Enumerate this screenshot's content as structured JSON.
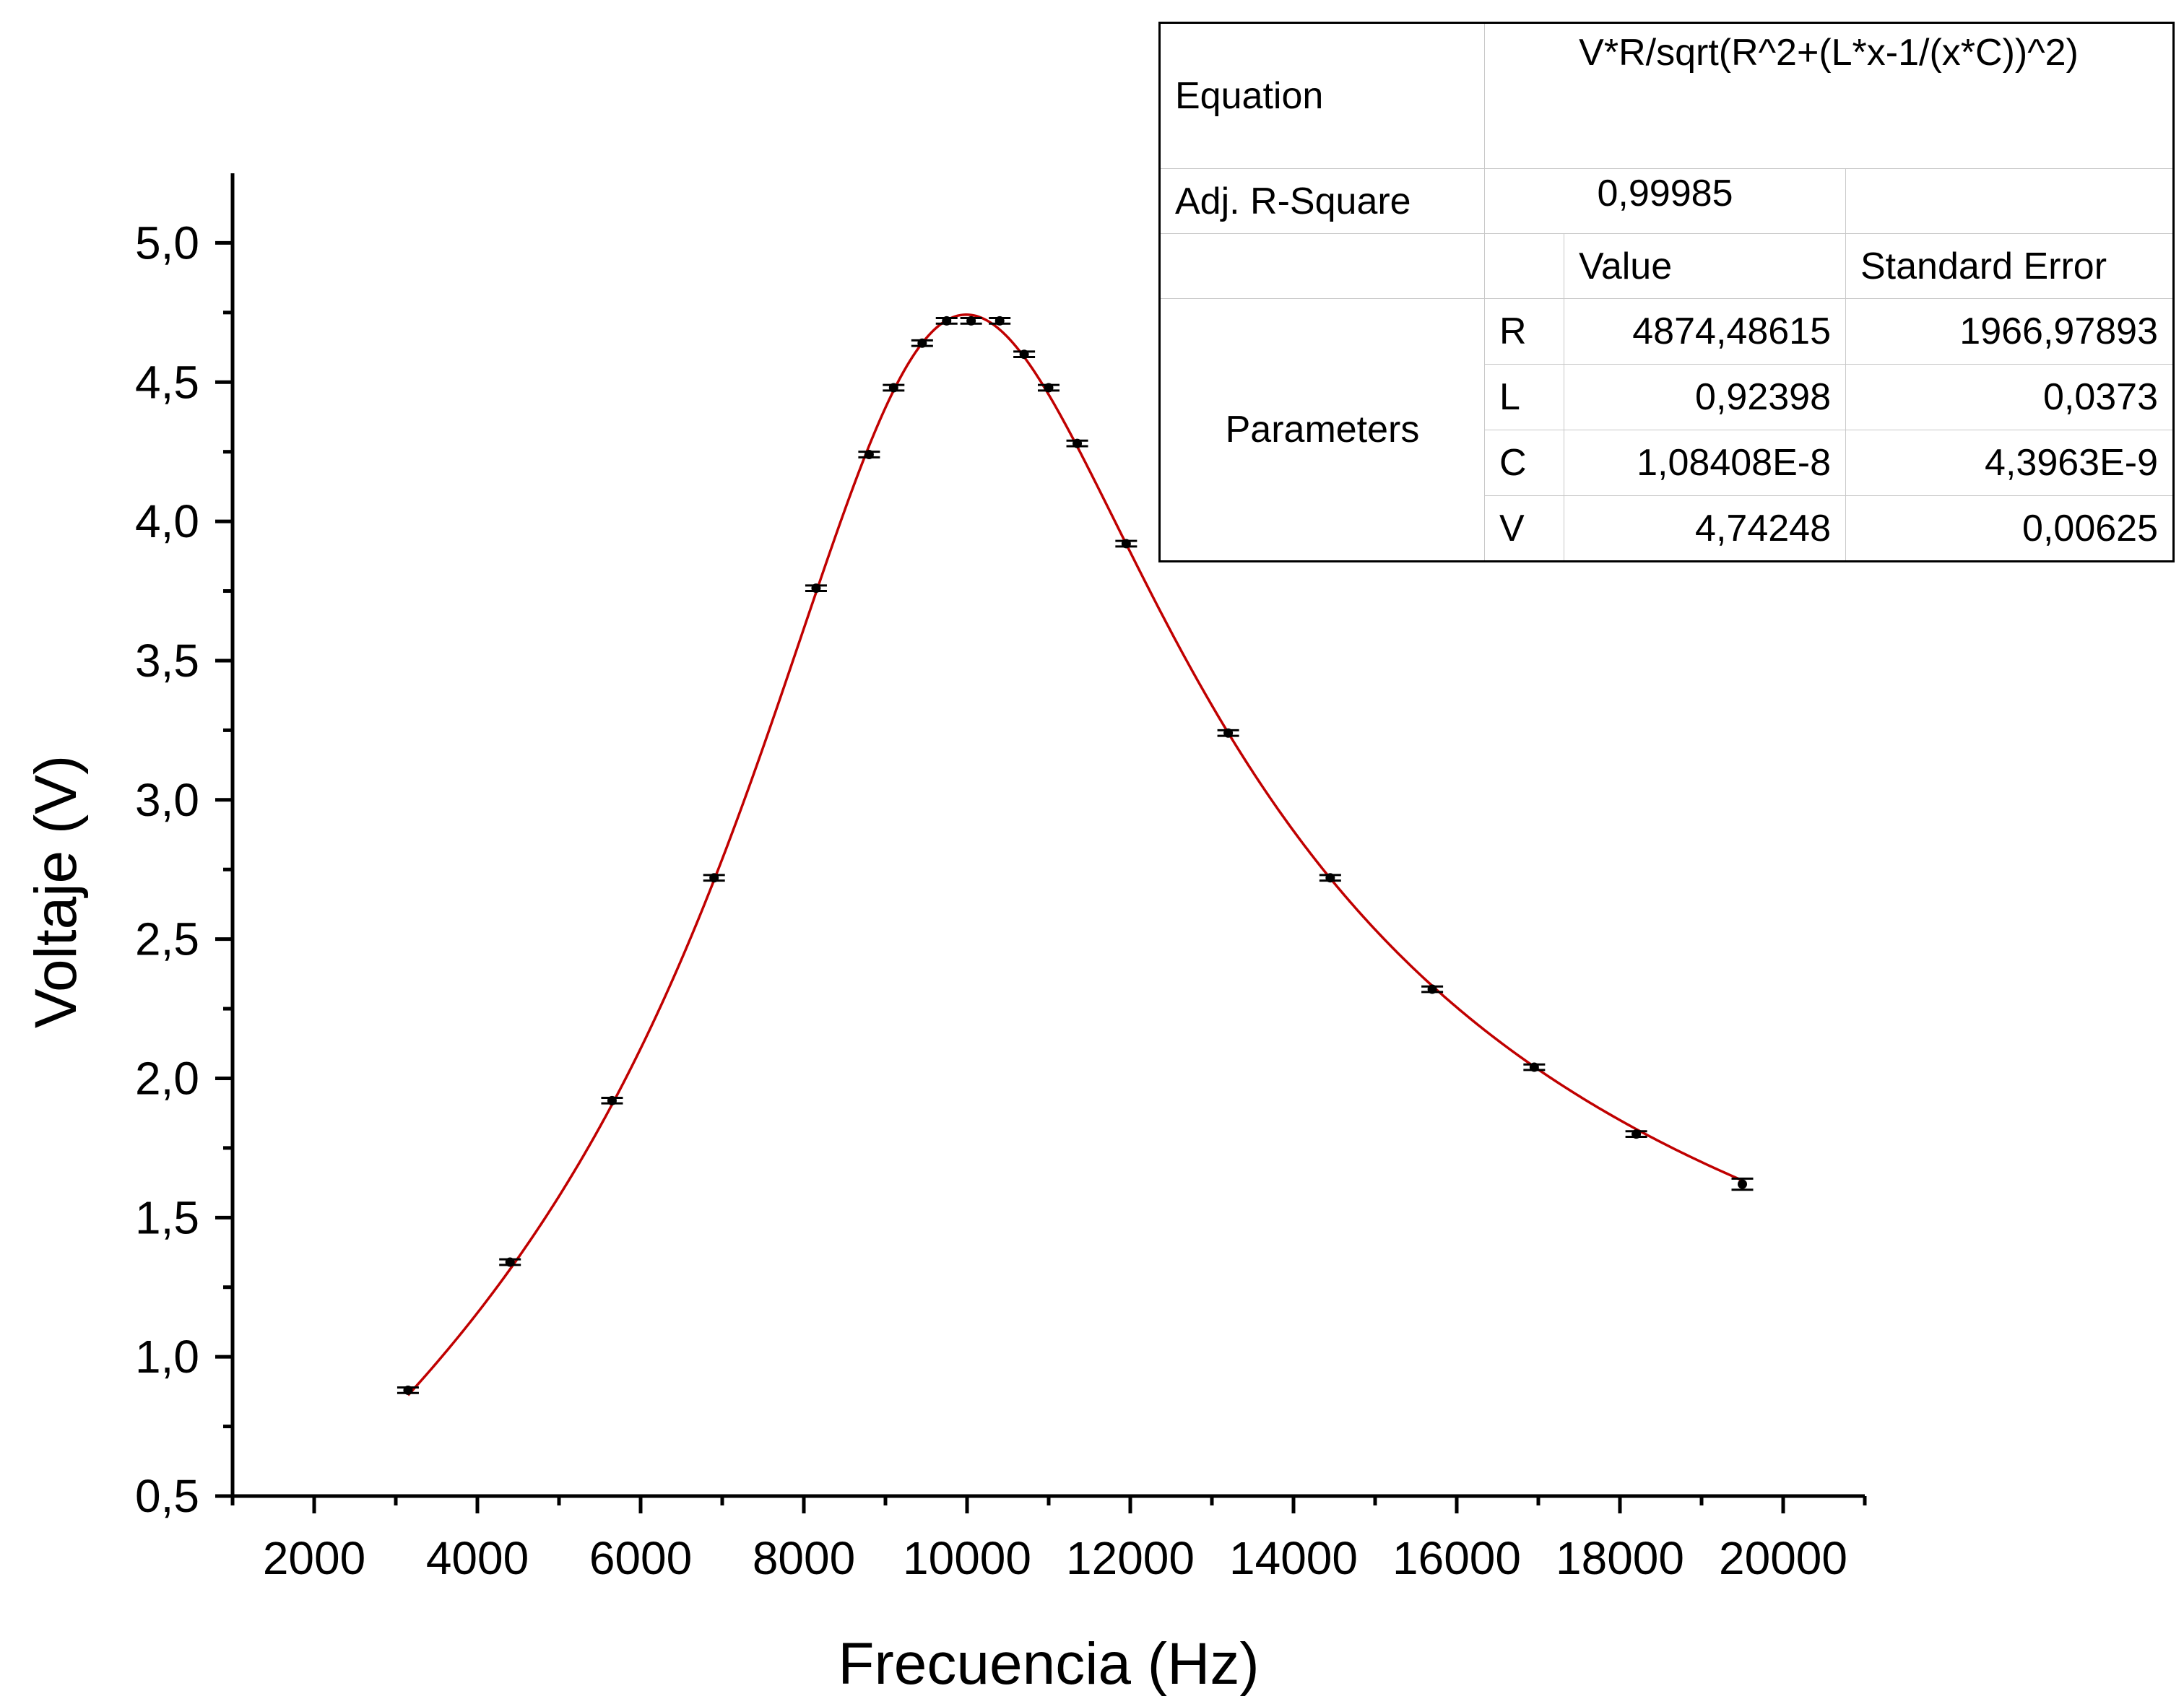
{
  "chart_data": {
    "type": "scatter",
    "xlabel": "Frecuencia (Hz)",
    "ylabel": "Voltaje (V)",
    "xlim": [
      1000,
      21000
    ],
    "ylim": [
      0.5,
      5.25
    ],
    "x_ticks": [
      2000,
      4000,
      6000,
      8000,
      10000,
      12000,
      14000,
      16000,
      18000,
      20000
    ],
    "x_tick_labels": [
      "2000",
      "4000",
      "6000",
      "8000",
      "10000",
      "12000",
      "14000",
      "16000",
      "18000",
      "20000"
    ],
    "y_ticks": [
      0.5,
      1.0,
      1.5,
      2.0,
      2.5,
      3.0,
      3.5,
      4.0,
      4.5,
      5.0
    ],
    "y_tick_labels": [
      "0,5",
      "1,0",
      "1,5",
      "2,0",
      "2,5",
      "3,0",
      "3,5",
      "4,0",
      "4,5",
      "5,0"
    ],
    "grid": false,
    "points": [
      {
        "x": 3150,
        "y": 0.88,
        "err": 0.01
      },
      {
        "x": 4400,
        "y": 1.34,
        "err": 0.01
      },
      {
        "x": 5650,
        "y": 1.92,
        "err": 0.01
      },
      {
        "x": 6900,
        "y": 2.72,
        "err": 0.01
      },
      {
        "x": 8150,
        "y": 3.76,
        "err": 0.01
      },
      {
        "x": 8800,
        "y": 4.24,
        "err": 0.01
      },
      {
        "x": 9100,
        "y": 4.48,
        "err": 0.01
      },
      {
        "x": 9450,
        "y": 4.64,
        "err": 0.01
      },
      {
        "x": 9750,
        "y": 4.72,
        "err": 0.01
      },
      {
        "x": 10050,
        "y": 4.72,
        "err": 0.01
      },
      {
        "x": 10400,
        "y": 4.72,
        "err": 0.01
      },
      {
        "x": 10700,
        "y": 4.6,
        "err": 0.01
      },
      {
        "x": 11000,
        "y": 4.48,
        "err": 0.01
      },
      {
        "x": 11350,
        "y": 4.28,
        "err": 0.01
      },
      {
        "x": 11950,
        "y": 3.92,
        "err": 0.01
      },
      {
        "x": 13200,
        "y": 3.24,
        "err": 0.01
      },
      {
        "x": 14450,
        "y": 2.72,
        "err": 0.01
      },
      {
        "x": 15700,
        "y": 2.32,
        "err": 0.01
      },
      {
        "x": 16950,
        "y": 2.04,
        "err": 0.01
      },
      {
        "x": 18200,
        "y": 1.8,
        "err": 0.01
      },
      {
        "x": 19500,
        "y": 1.62,
        "err": 0.02
      }
    ],
    "fit": {
      "color": "#c00000",
      "x_range": [
        3150,
        19500
      ]
    },
    "point_color": "#000000"
  },
  "fit_table": {
    "equation_label": "Equation",
    "equation": "V*R/sqrt(R^2+(L*x-1/(x*C))^2)",
    "adj_r_label": "Adj. R-Square",
    "adj_r_value": "0,99985",
    "value_header": "Value",
    "stderr_header": "Standard Error",
    "parameters_label": "Parameters",
    "params": [
      {
        "name": "R",
        "value": "4874,48615",
        "stderr": "1966,97893"
      },
      {
        "name": "L",
        "value": "0,92398",
        "stderr": "0,0373"
      },
      {
        "name": "C",
        "value": "1,08408E-8",
        "stderr": "4,3963E-9"
      },
      {
        "name": "V",
        "value": "4,74248",
        "stderr": "0,00625"
      }
    ]
  }
}
